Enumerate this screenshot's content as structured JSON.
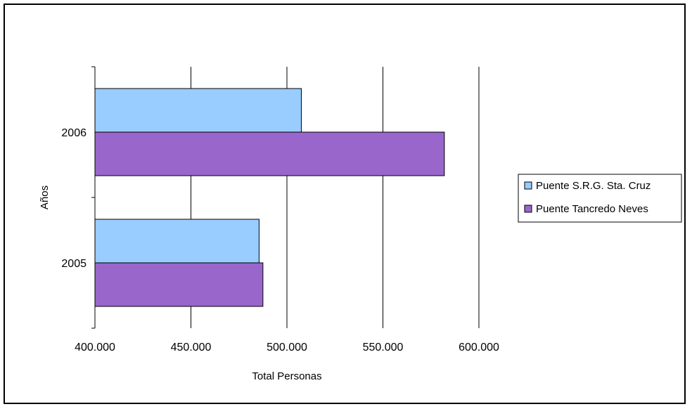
{
  "chart_data": {
    "type": "bar",
    "orientation": "horizontal",
    "categories": [
      "2005",
      "2006"
    ],
    "series": [
      {
        "name": "Puente S.R.G. Sta. Cruz",
        "values": [
          485500,
          507500
        ],
        "color": "#99CCFF"
      },
      {
        "name": "Puente Tancredo Neves",
        "values": [
          487500,
          582000
        ],
        "color": "#9966CC"
      }
    ],
    "xlabel": "Total Personas",
    "ylabel": "Años",
    "xlim": [
      400000,
      600000
    ],
    "xticks": [
      400000,
      450000,
      500000,
      550000,
      600000
    ],
    "xtick_labels": [
      "400.000",
      "450.000",
      "500.000",
      "550.000",
      "600.000"
    ],
    "grid": true,
    "legend_position": "right"
  }
}
